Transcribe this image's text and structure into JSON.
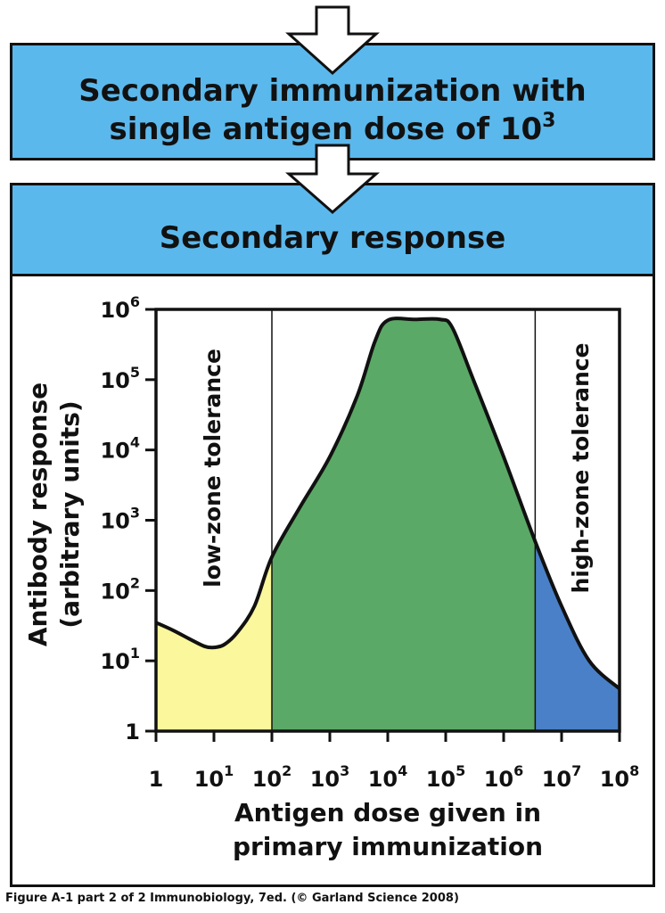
{
  "header": {
    "line1": "Secondary immunization with",
    "line2_base": "single antigen dose of 10",
    "line2_exp": "3"
  },
  "section": {
    "title": "Secondary response"
  },
  "chart_data": {
    "type": "area",
    "title": "",
    "xlabel": "Antigen dose given in primary immunization",
    "xlabel_lines": [
      "Antigen dose given in",
      "primary immunization"
    ],
    "ylabel": "Antibody response (arbitrary units)",
    "ylabel_lines": [
      "Antibody response",
      "(arbitrary units)"
    ],
    "x_scale": "log",
    "y_scale": "log",
    "xlim": [
      1,
      100000000
    ],
    "ylim": [
      1,
      1000000
    ],
    "x_ticks": [
      {
        "value": 1,
        "base": "1",
        "exp": ""
      },
      {
        "value": 10,
        "base": "10",
        "exp": "1"
      },
      {
        "value": 100,
        "base": "10",
        "exp": "2"
      },
      {
        "value": 1000,
        "base": "10",
        "exp": "3"
      },
      {
        "value": 10000,
        "base": "10",
        "exp": "4"
      },
      {
        "value": 100000,
        "base": "10",
        "exp": "5"
      },
      {
        "value": 1000000,
        "base": "10",
        "exp": "6"
      },
      {
        "value": 10000000,
        "base": "10",
        "exp": "7"
      },
      {
        "value": 100000000,
        "base": "10",
        "exp": "8"
      }
    ],
    "y_ticks": [
      {
        "value": 1,
        "base": "1",
        "exp": ""
      },
      {
        "value": 10,
        "base": "10",
        "exp": "1"
      },
      {
        "value": 100,
        "base": "10",
        "exp": "2"
      },
      {
        "value": 1000,
        "base": "10",
        "exp": "3"
      },
      {
        "value": 10000,
        "base": "10",
        "exp": "4"
      },
      {
        "value": 100000,
        "base": "10",
        "exp": "5"
      },
      {
        "value": 1000000,
        "base": "10",
        "exp": "6"
      }
    ],
    "boundaries": [
      100,
      3500000
    ],
    "zones": [
      {
        "label": "low-zone tolerance",
        "from": 1,
        "to": 100,
        "color": "#fbf79c"
      },
      {
        "label": "",
        "from": 100,
        "to": 3500000,
        "color": "#5ba966"
      },
      {
        "label": "high-zone tolerance",
        "from": 3500000,
        "to": 100000000,
        "color": "#4a80c8"
      }
    ],
    "curve": [
      {
        "x": 1,
        "y": 35
      },
      {
        "x": 2,
        "y": 27
      },
      {
        "x": 4,
        "y": 20
      },
      {
        "x": 7,
        "y": 16
      },
      {
        "x": 10,
        "y": 15.5
      },
      {
        "x": 15,
        "y": 17
      },
      {
        "x": 25,
        "y": 25
      },
      {
        "x": 50,
        "y": 60
      },
      {
        "x": 100,
        "y": 300
      },
      {
        "x": 300,
        "y": 1500
      },
      {
        "x": 1000,
        "y": 8000
      },
      {
        "x": 3000,
        "y": 60000
      },
      {
        "x": 6000,
        "y": 350000
      },
      {
        "x": 10000,
        "y": 700000
      },
      {
        "x": 30000,
        "y": 720000
      },
      {
        "x": 80000,
        "y": 720000
      },
      {
        "x": 130000,
        "y": 550000
      },
      {
        "x": 300000,
        "y": 100000
      },
      {
        "x": 1000000,
        "y": 8000
      },
      {
        "x": 3500000,
        "y": 500
      },
      {
        "x": 10000000,
        "y": 60
      },
      {
        "x": 30000000,
        "y": 10
      },
      {
        "x": 100000000,
        "y": 4
      }
    ],
    "grid": false,
    "legend": "none"
  },
  "caption": "Figure A-1 part 2 of 2  Immunobiology, 7ed. (© Garland Science 2008)"
}
